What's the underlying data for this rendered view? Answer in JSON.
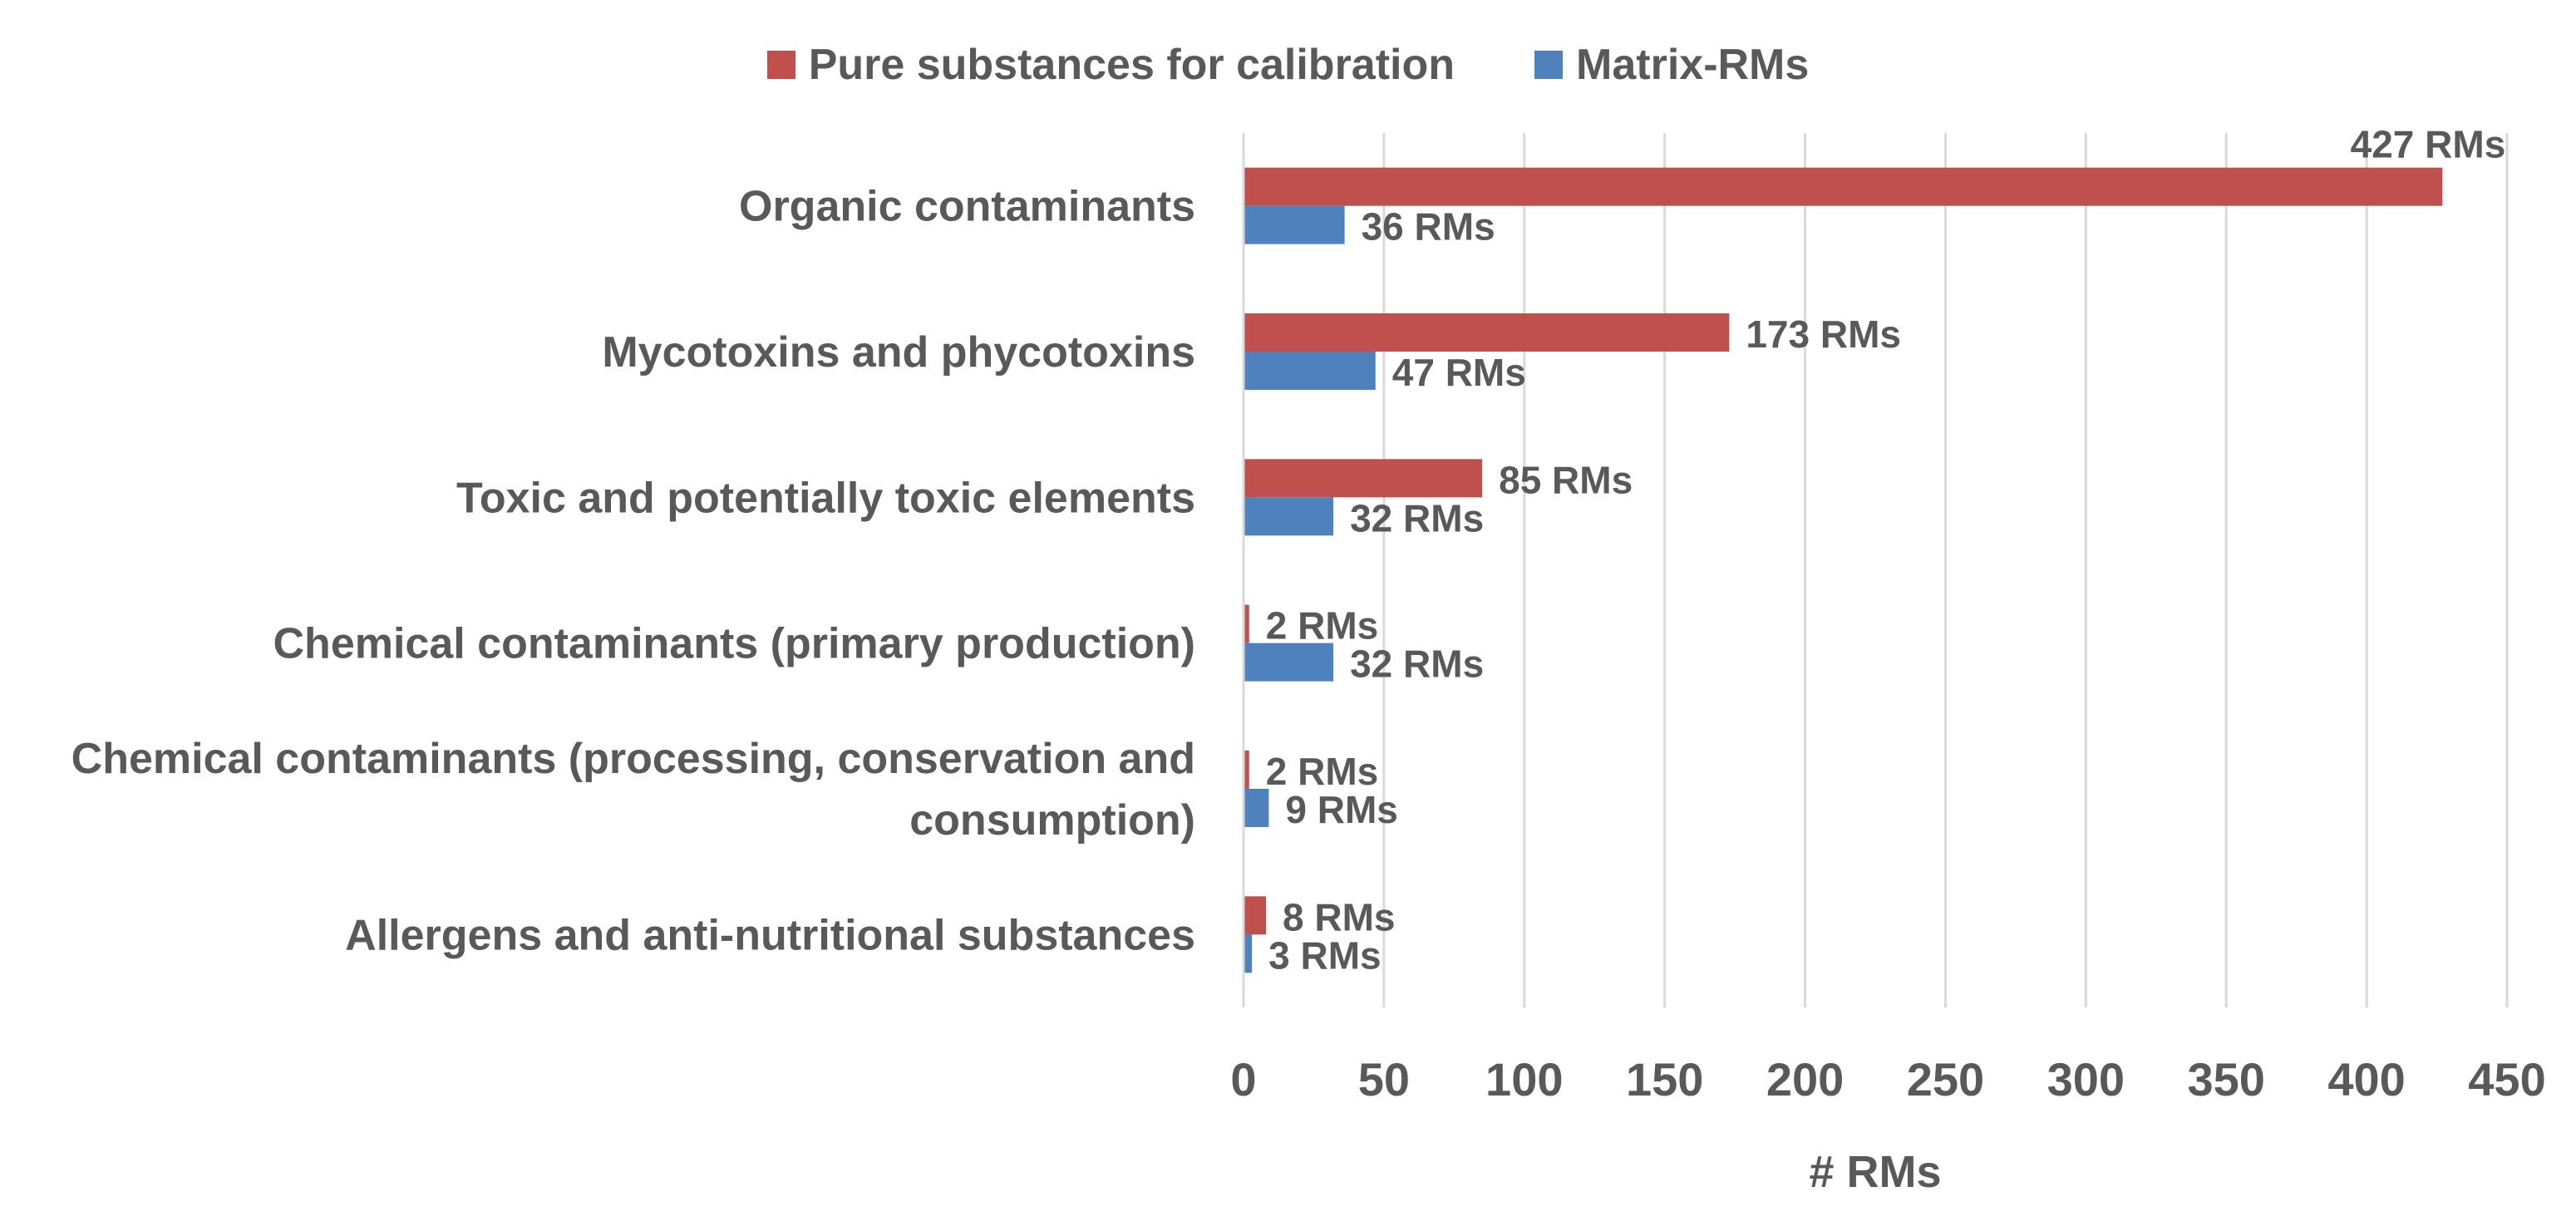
{
  "chart_data": {
    "type": "bar",
    "orientation": "horizontal",
    "categories": [
      "Organic contaminants",
      "Mycotoxins and phycotoxins",
      "Toxic and potentially toxic elements",
      "Chemical contaminants (primary production)",
      "Chemical contaminants (processing, conservation and consumption)",
      "Allergens and anti-nutritional substances"
    ],
    "category_lines": [
      [
        "Organic contaminants"
      ],
      [
        "Mycotoxins and phycotoxins"
      ],
      [
        "Toxic and potentially toxic elements"
      ],
      [
        "Chemical contaminants (primary production)"
      ],
      [
        "Chemical contaminants (processing, conservation and",
        "consumption)"
      ],
      [
        "Allergens and anti-nutritional substances"
      ]
    ],
    "series": [
      {
        "name": "Pure substances for calibration",
        "color": "#C0504D",
        "values": [
          427,
          173,
          85,
          2,
          2,
          8
        ],
        "labels": [
          "427 RMs",
          "173 RMs",
          "85 RMs",
          "2 RMs",
          "2 RMs",
          "8 RMs"
        ]
      },
      {
        "name": "Matrix-RMs",
        "color": "#4F81BD",
        "values": [
          36,
          47,
          32,
          32,
          9,
          3
        ],
        "labels": [
          "36 RMs",
          "47 RMs",
          "32 RMs",
          "32 RMs",
          "9 RMs",
          "3 RMs"
        ]
      }
    ],
    "xlabel": "# RMs",
    "xlim": [
      0,
      450
    ],
    "xticks": [
      0,
      50,
      100,
      150,
      200,
      250,
      300,
      350,
      400,
      450
    ],
    "grid": "vertical",
    "legend_position": "top"
  }
}
